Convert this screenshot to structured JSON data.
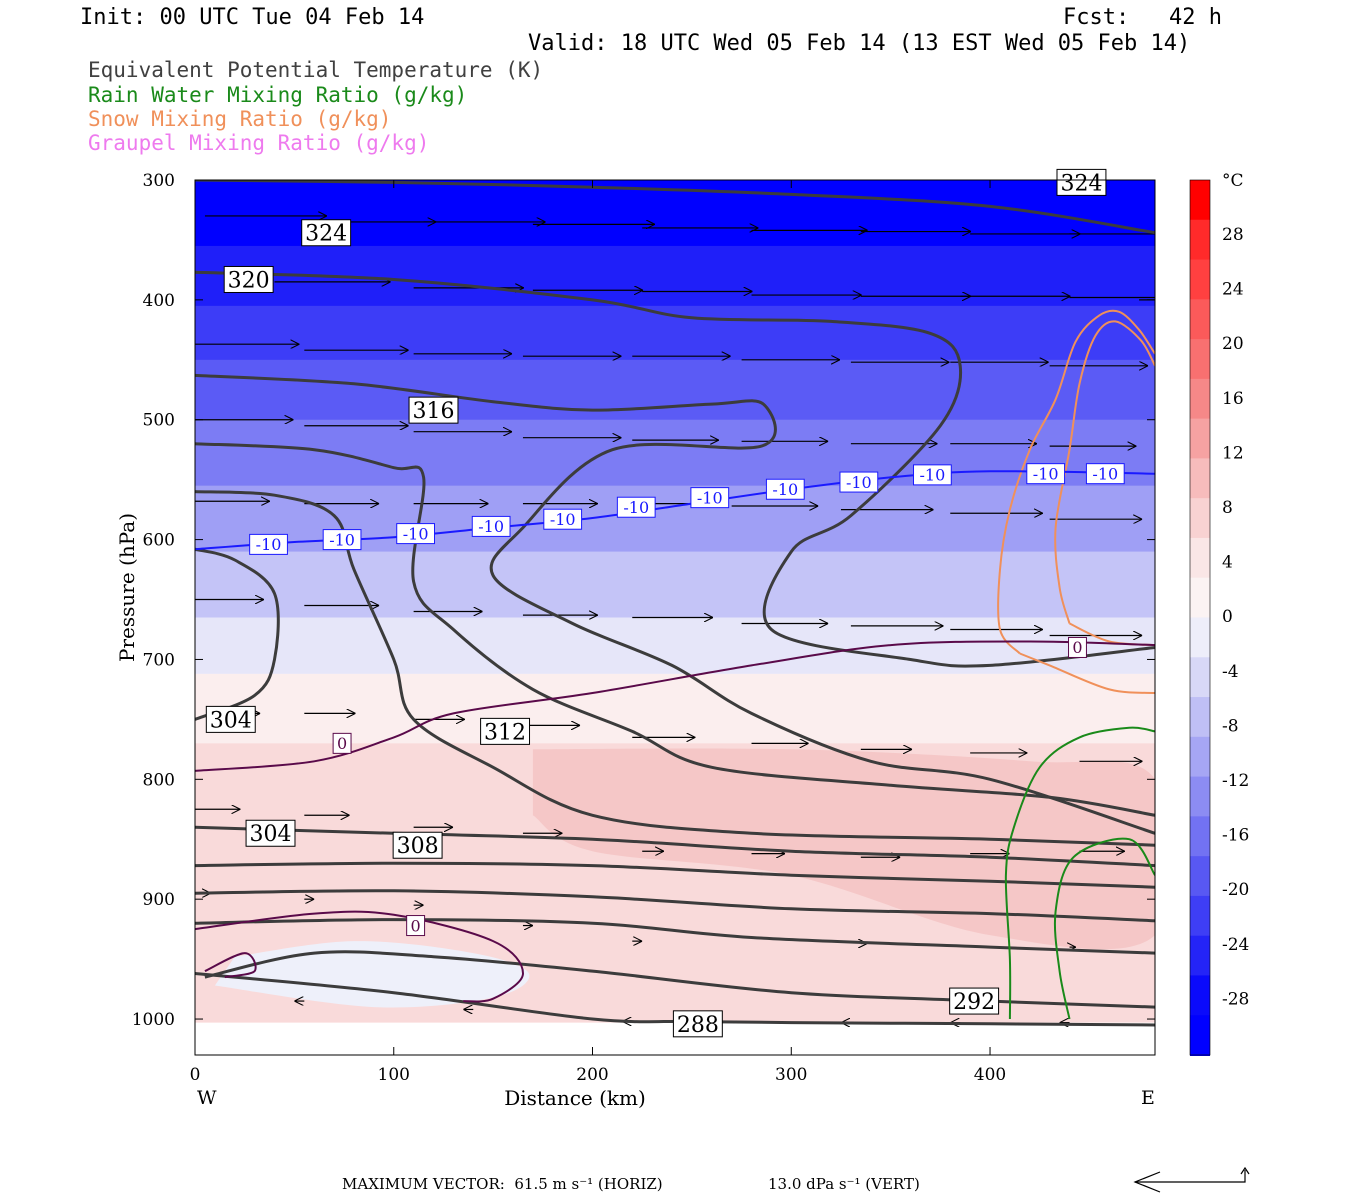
{
  "header": {
    "init": "Init: 00 UTC Tue 04 Feb 14",
    "fcst": "Fcst:   42 h",
    "valid": "Valid: 18 UTC Wed 05 Feb 14 (13 EST Wed 05 Feb 14)"
  },
  "legend": [
    {
      "label": "Equivalent Potential Temperature (K)",
      "color": "#404040"
    },
    {
      "label": "Rain Water Mixing Ratio (g/kg)",
      "color": "#1a8a1a"
    },
    {
      "label": "Snow Mixing Ratio (g/kg)",
      "color": "#f0905a"
    },
    {
      "label": "Graupel Mixing Ratio (g/kg)",
      "color": "#ee7aee"
    }
  ],
  "footer": {
    "max_vector": "MAXIMUM VECTOR:  61.5 m s⁻¹ (HORIZ)",
    "vert": "13.0 dPa s⁻¹ (VERT)"
  },
  "chart_data": {
    "type": "contour",
    "xlabel": "Distance (km)",
    "ylabel": "Pressure (hPa)",
    "xlim": [
      0,
      483
    ],
    "ylim": [
      1030,
      300
    ],
    "x_ticks": [
      0,
      100,
      200,
      300,
      400
    ],
    "y_ticks": [
      300,
      400,
      500,
      600,
      700,
      800,
      900,
      1000
    ],
    "x_end_labels": {
      "left": "W",
      "right": "E"
    },
    "colorbar": {
      "unit": "°C",
      "labels": [
        28,
        24,
        20,
        16,
        12,
        8,
        4,
        0,
        -4,
        -8,
        -12,
        -16,
        -20,
        -24,
        -28
      ]
    },
    "theta_e_contours": [
      {
        "label": "324",
        "points": [
          [
            0,
            300
          ],
          [
            100,
            302
          ],
          [
            200,
            306
          ],
          [
            300,
            312
          ],
          [
            400,
            322
          ],
          [
            483,
            344
          ]
        ]
      },
      {
        "label": "320",
        "points": [
          [
            0,
            377
          ],
          [
            100,
            383
          ],
          [
            200,
            400
          ],
          [
            250,
            415
          ],
          [
            320,
            418
          ],
          [
            370,
            428
          ],
          [
            385,
            455
          ],
          [
            375,
            505
          ],
          [
            330,
            580
          ],
          [
            300,
            610
          ],
          [
            290,
            675
          ],
          [
            360,
            700
          ],
          [
            400,
            705
          ],
          [
            483,
            690
          ]
        ]
      },
      {
        "label": "316",
        "points": [
          [
            0,
            463
          ],
          [
            80,
            470
          ],
          [
            150,
            485
          ],
          [
            200,
            492
          ],
          [
            260,
            487
          ],
          [
            286,
            487
          ],
          [
            285,
            522
          ],
          [
            210,
            525
          ],
          [
            165,
            590
          ],
          [
            150,
            630
          ],
          [
            190,
            670
          ],
          [
            240,
            705
          ],
          [
            280,
            745
          ],
          [
            340,
            785
          ],
          [
            400,
            800
          ],
          [
            483,
            845
          ]
        ]
      },
      {
        "label": "312",
        "points": [
          [
            0,
            520
          ],
          [
            60,
            525
          ],
          [
            100,
            540
          ],
          [
            115,
            548
          ],
          [
            110,
            635
          ],
          [
            130,
            675
          ],
          [
            170,
            725
          ],
          [
            220,
            760
          ],
          [
            260,
            790
          ],
          [
            350,
            805
          ],
          [
            430,
            815
          ],
          [
            483,
            830
          ]
        ]
      },
      {
        "label": "308",
        "points": [
          [
            0,
            560
          ],
          [
            40,
            563
          ],
          [
            70,
            580
          ],
          [
            80,
            625
          ],
          [
            100,
            700
          ],
          [
            110,
            750
          ],
          [
            150,
            790
          ],
          [
            200,
            830
          ],
          [
            280,
            845
          ],
          [
            400,
            850
          ],
          [
            483,
            855
          ]
        ]
      },
      {
        "label": "304",
        "points": [
          [
            0,
            608
          ],
          [
            20,
            617
          ],
          [
            40,
            645
          ],
          [
            40,
            700
          ],
          [
            30,
            730
          ],
          [
            0,
            750
          ]
        ]
      },
      {
        "label": "304",
        "points": [
          [
            0,
            840
          ],
          [
            100,
            845
          ],
          [
            200,
            850
          ],
          [
            300,
            860
          ],
          [
            400,
            865
          ],
          [
            483,
            872
          ]
        ]
      },
      {
        "label": "",
        "points": [
          [
            0,
            872
          ],
          [
            100,
            870
          ],
          [
            200,
            872
          ],
          [
            300,
            880
          ],
          [
            400,
            885
          ],
          [
            483,
            890
          ]
        ]
      },
      {
        "label": "",
        "points": [
          [
            0,
            895
          ],
          [
            100,
            893
          ],
          [
            200,
            898
          ],
          [
            300,
            908
          ],
          [
            400,
            912
          ],
          [
            483,
            918
          ]
        ]
      },
      {
        "label": "",
        "points": [
          [
            0,
            920
          ],
          [
            100,
            917
          ],
          [
            200,
            920
          ],
          [
            280,
            932
          ],
          [
            400,
            940
          ],
          [
            483,
            945
          ]
        ]
      },
      {
        "label": "292",
        "points": [
          [
            5,
            965
          ],
          [
            60,
            945
          ],
          [
            120,
            948
          ],
          [
            200,
            960
          ],
          [
            300,
            978
          ],
          [
            400,
            985
          ],
          [
            483,
            990
          ]
        ]
      },
      {
        "label": "288",
        "points": [
          [
            0,
            962
          ],
          [
            100,
            978
          ],
          [
            200,
            1000
          ],
          [
            250,
            1002
          ],
          [
            300,
            1003
          ],
          [
            400,
            1004
          ],
          [
            483,
            1005
          ]
        ]
      }
    ],
    "temperature_isotherms": [
      {
        "label": "-10",
        "color": "#1a1aff",
        "points": [
          [
            0,
            608
          ],
          [
            50,
            602
          ],
          [
            100,
            598
          ],
          [
            150,
            590
          ],
          [
            200,
            582
          ],
          [
            250,
            570
          ],
          [
            300,
            558
          ],
          [
            350,
            548
          ],
          [
            400,
            543
          ],
          [
            483,
            545
          ]
        ]
      },
      {
        "label": "0",
        "color": "#5a0a4a",
        "points": [
          [
            0,
            793
          ],
          [
            60,
            785
          ],
          [
            100,
            765
          ],
          [
            130,
            745
          ],
          [
            200,
            728
          ],
          [
            280,
            705
          ],
          [
            350,
            688
          ],
          [
            420,
            685
          ],
          [
            483,
            688
          ]
        ]
      },
      {
        "label": "0",
        "color": "#5a0a4a",
        "points": [
          [
            0,
            925
          ],
          [
            60,
            912
          ],
          [
            100,
            913
          ],
          [
            150,
            935
          ],
          [
            165,
            962
          ],
          [
            150,
            983
          ],
          [
            135,
            985
          ]
        ]
      },
      {
        "label": "",
        "color": "#5a0a4a",
        "points": [
          [
            5,
            960
          ],
          [
            25,
            945
          ],
          [
            30,
            960
          ],
          [
            15,
            965
          ]
        ]
      }
    ],
    "rain_contours": [
      {
        "label": "",
        "points": [
          [
            410,
            1000
          ],
          [
            410,
            950
          ],
          [
            408,
            880
          ],
          [
            412,
            840
          ],
          [
            425,
            790
          ],
          [
            445,
            765
          ],
          [
            470,
            757
          ],
          [
            483,
            760
          ]
        ]
      },
      {
        "label": "",
        "points": [
          [
            440,
            1000
          ],
          [
            435,
            960
          ],
          [
            433,
            910
          ],
          [
            442,
            865
          ],
          [
            470,
            850
          ],
          [
            483,
            880
          ]
        ]
      }
    ],
    "snow_contours": [
      {
        "label": "",
        "points": [
          [
            415,
            695
          ],
          [
            405,
            675
          ],
          [
            405,
            625
          ],
          [
            410,
            575
          ],
          [
            420,
            525
          ],
          [
            433,
            483
          ],
          [
            443,
            435
          ],
          [
            455,
            413
          ],
          [
            465,
            410
          ],
          [
            475,
            425
          ],
          [
            483,
            445
          ]
        ]
      },
      {
        "label": "",
        "points": [
          [
            440,
            670
          ],
          [
            435,
            640
          ],
          [
            433,
            590
          ],
          [
            440,
            525
          ],
          [
            445,
            470
          ],
          [
            453,
            430
          ],
          [
            463,
            418
          ],
          [
            476,
            434
          ],
          [
            483,
            455
          ]
        ]
      },
      {
        "label": "",
        "points": [
          [
            415,
            695
          ],
          [
            430,
            705
          ],
          [
            460,
            725
          ],
          [
            483,
            728
          ]
        ]
      },
      {
        "label": "",
        "points": [
          [
            440,
            670
          ],
          [
            460,
            685
          ],
          [
            483,
            688
          ]
        ]
      }
    ],
    "wind_vectors": [
      {
        "x": 5,
        "p": 330,
        "u": 1.0
      },
      {
        "x": 60,
        "p": 335,
        "u": 1.0
      },
      {
        "x": 115,
        "p": 335,
        "u": 1.0
      },
      {
        "x": 170,
        "p": 337,
        "u": 1.0
      },
      {
        "x": 225,
        "p": 340,
        "u": 0.95
      },
      {
        "x": 280,
        "p": 342,
        "u": 0.95
      },
      {
        "x": 335,
        "p": 343,
        "u": 0.9
      },
      {
        "x": 390,
        "p": 345,
        "u": 0.9
      },
      {
        "x": 440,
        "p": 345,
        "u": 0.9
      },
      {
        "x": 40,
        "p": 385,
        "u": 0.95
      },
      {
        "x": 110,
        "p": 390,
        "u": 0.9
      },
      {
        "x": 170,
        "p": 392,
        "u": 0.9
      },
      {
        "x": 225,
        "p": 393,
        "u": 0.9
      },
      {
        "x": 280,
        "p": 396,
        "u": 0.9
      },
      {
        "x": 335,
        "p": 397,
        "u": 0.9
      },
      {
        "x": 385,
        "p": 397,
        "u": 0.9
      },
      {
        "x": 440,
        "p": 398,
        "u": 0.85
      },
      {
        "x": 475,
        "p": 400,
        "u": 0.2
      },
      {
        "x": 0,
        "p": 437,
        "u": 0.85
      },
      {
        "x": 55,
        "p": 442,
        "u": 0.85
      },
      {
        "x": 110,
        "p": 445,
        "u": 0.8
      },
      {
        "x": 165,
        "p": 447,
        "u": 0.8
      },
      {
        "x": 220,
        "p": 447,
        "u": 0.8
      },
      {
        "x": 275,
        "p": 450,
        "u": 0.8
      },
      {
        "x": 330,
        "p": 452,
        "u": 0.8
      },
      {
        "x": 380,
        "p": 452,
        "u": 0.8
      },
      {
        "x": 430,
        "p": 455,
        "u": 0.8
      },
      {
        "x": 0,
        "p": 500,
        "u": 0.8
      },
      {
        "x": 55,
        "p": 505,
        "u": 0.85
      },
      {
        "x": 110,
        "p": 510,
        "u": 0.8
      },
      {
        "x": 165,
        "p": 515,
        "u": 0.8
      },
      {
        "x": 220,
        "p": 517,
        "u": 0.7
      },
      {
        "x": 275,
        "p": 518,
        "u": 0.7
      },
      {
        "x": 330,
        "p": 520,
        "u": 0.7
      },
      {
        "x": 380,
        "p": 520,
        "u": 0.7
      },
      {
        "x": 430,
        "p": 522,
        "u": 0.7
      },
      {
        "x": 0,
        "p": 568,
        "u": 0.6
      },
      {
        "x": 55,
        "p": 570,
        "u": 0.6
      },
      {
        "x": 110,
        "p": 570,
        "u": 0.6
      },
      {
        "x": 165,
        "p": 570,
        "u": 0.6
      },
      {
        "x": 215,
        "p": 570,
        "u": 0.7
      },
      {
        "x": 270,
        "p": 572,
        "u": 0.7
      },
      {
        "x": 325,
        "p": 575,
        "u": 0.75
      },
      {
        "x": 380,
        "p": 578,
        "u": 0.75
      },
      {
        "x": 430,
        "p": 583,
        "u": 0.75
      },
      {
        "x": 0,
        "p": 650,
        "u": 0.55
      },
      {
        "x": 55,
        "p": 655,
        "u": 0.6
      },
      {
        "x": 110,
        "p": 660,
        "u": 0.55
      },
      {
        "x": 165,
        "p": 663,
        "u": 0.6
      },
      {
        "x": 220,
        "p": 665,
        "u": 0.65
      },
      {
        "x": 275,
        "p": 670,
        "u": 0.7
      },
      {
        "x": 330,
        "p": 672,
        "u": 0.75
      },
      {
        "x": 380,
        "p": 675,
        "u": 0.75
      },
      {
        "x": 430,
        "p": 680,
        "u": 0.75
      },
      {
        "x": 10,
        "p": 745,
        "u": 0.35
      },
      {
        "x": 55,
        "p": 745,
        "u": 0.4
      },
      {
        "x": 110,
        "p": 750,
        "u": 0.4
      },
      {
        "x": 165,
        "p": 755,
        "u": 0.45
      },
      {
        "x": 220,
        "p": 765,
        "u": 0.5
      },
      {
        "x": 280,
        "p": 770,
        "u": 0.45
      },
      {
        "x": 335,
        "p": 775,
        "u": 0.4
      },
      {
        "x": 390,
        "p": 778,
        "u": 0.45
      },
      {
        "x": 445,
        "p": 785,
        "u": 0.5
      },
      {
        "x": 0,
        "p": 825,
        "u": 0.35
      },
      {
        "x": 55,
        "p": 830,
        "u": 0.35
      },
      {
        "x": 110,
        "p": 840,
        "u": 0.3
      },
      {
        "x": 165,
        "p": 845,
        "u": 0.3
      },
      {
        "x": 225,
        "p": 860,
        "u": 0.15
      },
      {
        "x": 280,
        "p": 862,
        "u": 0.25
      },
      {
        "x": 335,
        "p": 865,
        "u": 0.3
      },
      {
        "x": 390,
        "p": 862,
        "u": 0.3
      },
      {
        "x": 445,
        "p": 860,
        "u": 0.35
      },
      {
        "x": 0,
        "p": 895,
        "u": 0.1
      },
      {
        "x": 55,
        "p": 900,
        "u": 0.05
      },
      {
        "x": 110,
        "p": 905,
        "u": 0.05
      },
      {
        "x": 165,
        "p": 922,
        "u": 0.05
      },
      {
        "x": 220,
        "p": 935,
        "u": 0.05
      },
      {
        "x": 335,
        "p": 937,
        "u": 0.02
      },
      {
        "x": 440,
        "p": 940,
        "u": 0.02
      },
      {
        "x": 55,
        "p": 985,
        "u": -0.05
      },
      {
        "x": 140,
        "p": 992,
        "u": -0.05
      },
      {
        "x": 220,
        "p": 1002,
        "u": -0.05
      },
      {
        "x": 330,
        "p": 1003,
        "u": -0.05
      },
      {
        "x": 385,
        "p": 1003,
        "u": -0.05
      },
      {
        "x": 440,
        "p": 1003,
        "u": -0.05
      }
    ]
  }
}
